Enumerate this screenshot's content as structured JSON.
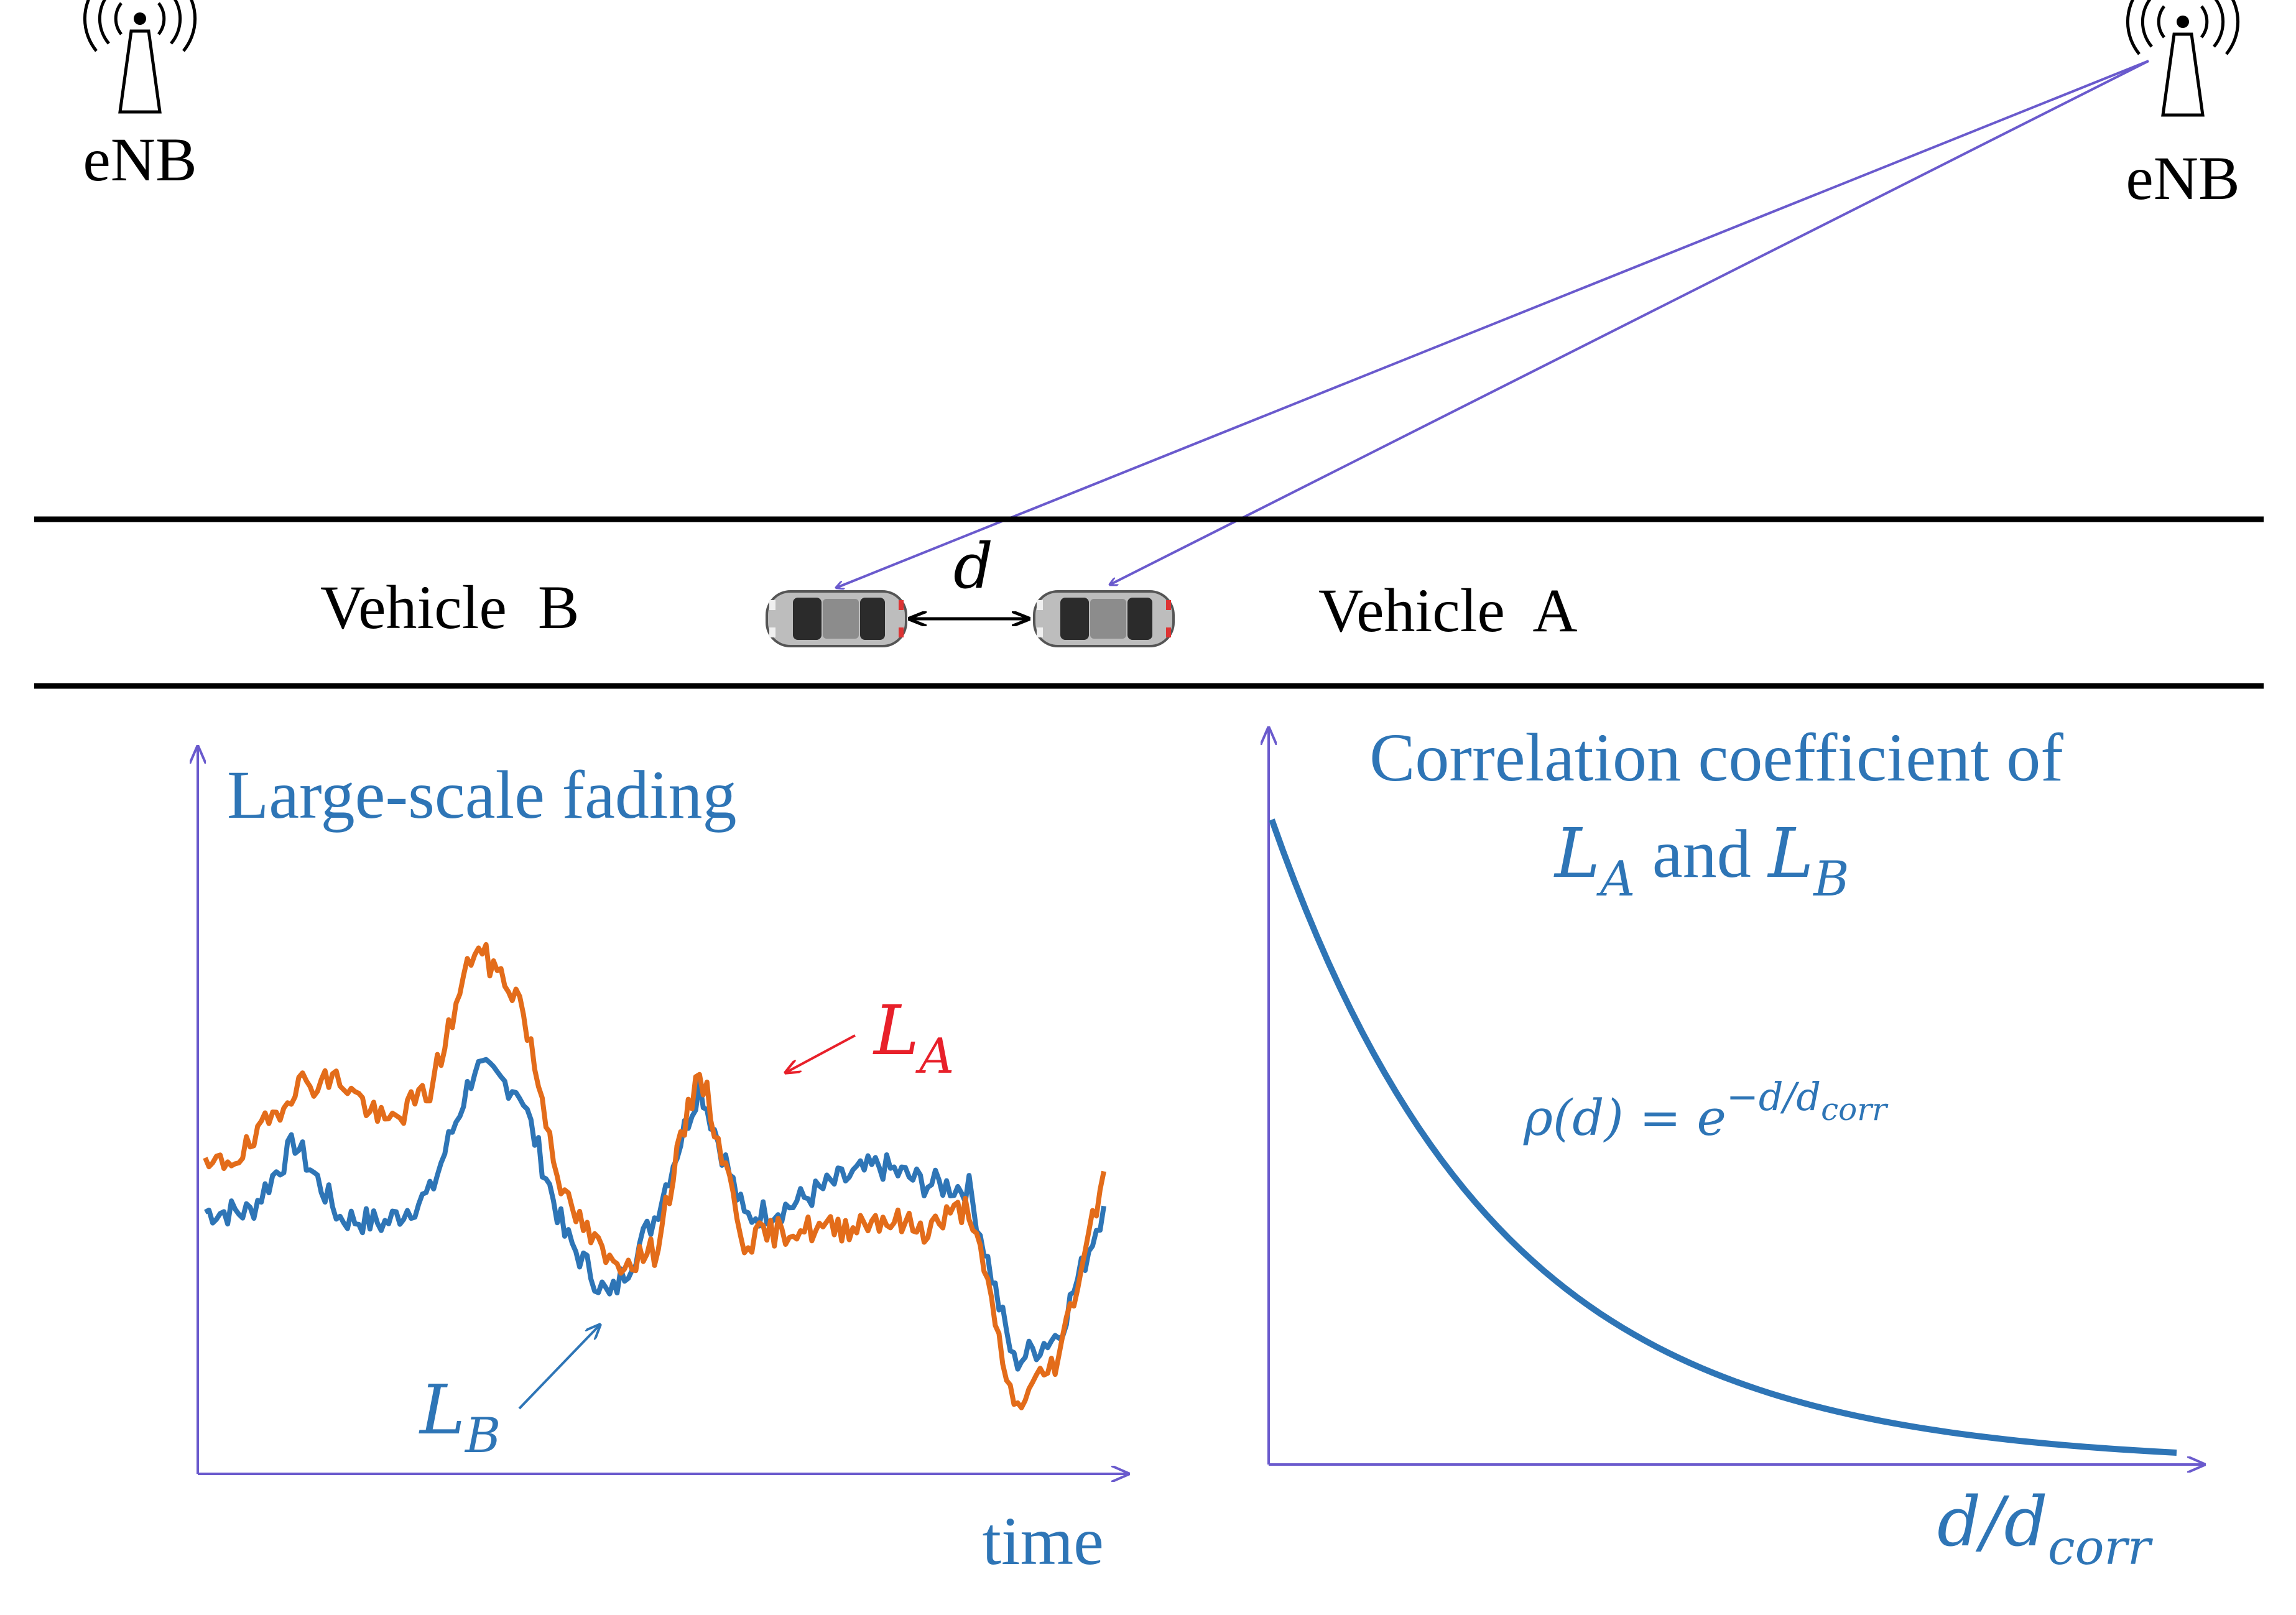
{
  "colors": {
    "blue_text": "#2e75b6",
    "link_line": "#6a5acd",
    "road_line": "#000000",
    "la_red": "#e8202a",
    "la_curve": "#e36c1a",
    "lb_curve": "#2e75b6",
    "axis": "#6a5acd"
  },
  "stations": {
    "left_label": "eNB",
    "right_label": "eNB",
    "icon": "antenna-tower-icon"
  },
  "road": {
    "vehicle_b_label": "Vehicle  B",
    "vehicle_a_label": "Vehicle  A",
    "distance_symbol": "d",
    "car_icon": "car-icon"
  },
  "fading_plot": {
    "title": "Large-scale fading",
    "xlabel": "time",
    "la_label": "L",
    "la_sub": "A",
    "lb_label": "L",
    "lb_sub": "B"
  },
  "correlation_plot": {
    "title_line1": "Correlation coefficient of",
    "title_la": "L",
    "title_la_sub": "A",
    "title_and": " and ",
    "title_lb": "L",
    "title_lb_sub": "B",
    "formula_lhs": "ρ(d) = e",
    "formula_exp": "−d/d",
    "formula_exp_sub": "corr",
    "xlabel_main": "d/d",
    "xlabel_sub": "corr"
  },
  "chart_data": [
    {
      "type": "line",
      "title": "Large-scale fading",
      "xlabel": "time",
      "ylabel": "",
      "x": [
        0,
        0.05,
        0.1,
        0.15,
        0.2,
        0.25,
        0.3,
        0.35,
        0.4,
        0.45,
        0.5,
        0.55,
        0.6,
        0.65,
        0.7,
        0.75,
        0.8,
        0.85,
        0.9,
        0.95,
        1.0
      ],
      "series": [
        {
          "name": "L_A",
          "values": [
            0.48,
            0.52,
            0.63,
            0.64,
            0.56,
            0.62,
            0.87,
            0.78,
            0.43,
            0.32,
            0.34,
            0.66,
            0.36,
            0.38,
            0.38,
            0.4,
            0.38,
            0.42,
            0.07,
            0.16,
            0.48
          ]
        },
        {
          "name": "L_B",
          "values": [
            0.41,
            0.41,
            0.53,
            0.4,
            0.39,
            0.44,
            0.66,
            0.62,
            0.37,
            0.26,
            0.4,
            0.63,
            0.4,
            0.42,
            0.46,
            0.49,
            0.46,
            0.45,
            0.15,
            0.2,
            0.42
          ]
        }
      ]
    },
    {
      "type": "line",
      "title": "Correlation coefficient of L_A and L_B",
      "xlabel": "d/d_corr",
      "ylabel": "",
      "formula": "ρ(d) = e^(−d/d_corr)",
      "x": [
        0,
        0.25,
        0.5,
        0.75,
        1.0,
        1.25,
        1.5,
        1.75,
        2.0,
        2.25,
        2.5,
        2.75,
        3.0,
        3.25,
        3.5,
        3.75,
        4.0
      ],
      "series": [
        {
          "name": "ρ(d)",
          "values": [
            1.0,
            0.779,
            0.607,
            0.472,
            0.368,
            0.287,
            0.223,
            0.174,
            0.135,
            0.105,
            0.082,
            0.064,
            0.05,
            0.039,
            0.03,
            0.024,
            0.018
          ]
        }
      ]
    }
  ]
}
